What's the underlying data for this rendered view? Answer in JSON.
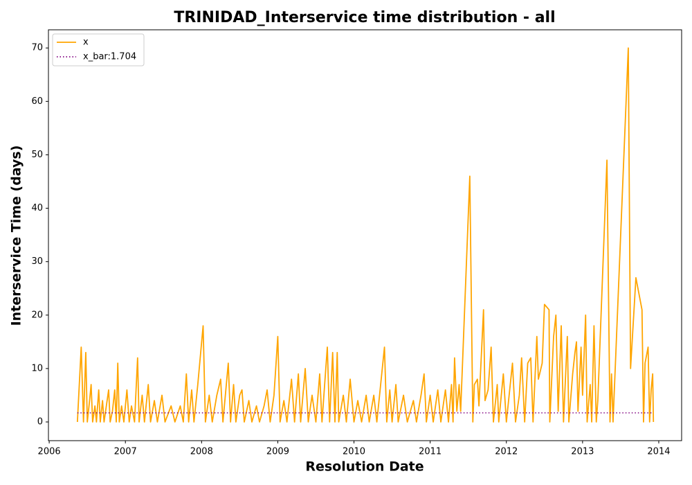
{
  "chart_data": {
    "type": "line",
    "title": "TRINIDAD_Interservice time distribution - all",
    "x_label": "Resolution Date",
    "y_label": "Interservice Time (days)",
    "xlim": [
      2005.99,
      2014.3
    ],
    "ylim": [
      -3.5,
      73.4
    ],
    "xticks": [
      2006,
      2007,
      2008,
      2009,
      2010,
      2011,
      2012,
      2013,
      2014
    ],
    "yticks": [
      0,
      10,
      20,
      30,
      40,
      50,
      60,
      70
    ],
    "legend": "upper left",
    "series": [
      {
        "name": "x",
        "color": "#ffa500",
        "linestyle": "solid",
        "x": [
          2006.37,
          2006.42,
          2006.45,
          2006.48,
          2006.5,
          2006.53,
          2006.55,
          2006.57,
          2006.6,
          2006.62,
          2006.65,
          2006.67,
          2006.7,
          2006.72,
          2006.75,
          2006.78,
          2006.8,
          2006.83,
          2006.86,
          2006.88,
          2006.9,
          2006.92,
          2006.95,
          2006.98,
          2007.02,
          2007.05,
          2007.08,
          2007.12,
          2007.16,
          2007.18,
          2007.22,
          2007.25,
          2007.3,
          2007.33,
          2007.38,
          2007.42,
          2007.48,
          2007.52,
          2007.6,
          2007.65,
          2007.72,
          2007.76,
          2007.8,
          2007.83,
          2007.87,
          2007.9,
          2007.95,
          2008.02,
          2008.05,
          2008.1,
          2008.14,
          2008.2,
          2008.25,
          2008.28,
          2008.35,
          2008.38,
          2008.42,
          2008.45,
          2008.5,
          2008.53,
          2008.56,
          2008.62,
          2008.66,
          2008.72,
          2008.76,
          2008.82,
          2008.86,
          2008.9,
          2008.95,
          2009.0,
          2009.03,
          2009.08,
          2009.12,
          2009.18,
          2009.22,
          2009.27,
          2009.3,
          2009.36,
          2009.4,
          2009.45,
          2009.5,
          2009.55,
          2009.58,
          2009.65,
          2009.68,
          2009.72,
          2009.75,
          2009.78,
          2009.8,
          2009.86,
          2009.9,
          2009.95,
          2010.0,
          2010.05,
          2010.1,
          2010.16,
          2010.2,
          2010.26,
          2010.3,
          2010.4,
          2010.43,
          2010.47,
          2010.5,
          2010.55,
          2010.58,
          2010.65,
          2010.7,
          2010.78,
          2010.82,
          2010.88,
          2010.92,
          2010.95,
          2011.0,
          2011.04,
          2011.1,
          2011.14,
          2011.2,
          2011.24,
          2011.28,
          2011.3,
          2011.32,
          2011.35,
          2011.38,
          2011.4,
          2011.52,
          2011.56,
          2011.58,
          2011.62,
          2011.64,
          2011.7,
          2011.72,
          2011.76,
          2011.8,
          2011.83,
          2011.88,
          2011.9,
          2011.96,
          2012.0,
          2012.08,
          2012.12,
          2012.17,
          2012.2,
          2012.24,
          2012.28,
          2012.32,
          2012.35,
          2012.4,
          2012.42,
          2012.47,
          2012.5,
          2012.56,
          2012.57,
          2012.62,
          2012.65,
          2012.68,
          2012.72,
          2012.75,
          2012.8,
          2012.82,
          2012.87,
          2012.9,
          2012.92,
          2012.94,
          2012.98,
          2013.0,
          2013.04,
          2013.06,
          2013.1,
          2013.12,
          2013.15,
          2013.18,
          2013.2,
          2013.32,
          2013.36,
          2013.38,
          2013.4,
          2013.6,
          2013.63,
          2013.7,
          2013.78,
          2013.8,
          2013.82,
          2013.86,
          2013.88,
          2013.9,
          2013.92,
          2013.93
        ],
        "values": [
          0,
          14,
          0,
          13,
          0,
          4,
          7,
          0,
          3,
          0,
          6,
          0,
          4,
          0,
          3,
          6,
          0,
          2,
          6,
          0,
          11,
          0,
          3,
          0,
          6,
          0,
          3,
          0,
          12,
          0,
          5,
          0,
          7,
          0,
          4,
          0,
          5,
          0,
          3,
          0,
          3,
          0,
          9,
          0,
          6,
          0,
          7,
          18,
          0,
          5,
          0,
          5,
          8,
          0,
          11,
          0,
          7,
          0,
          5,
          6,
          0,
          4,
          0,
          3,
          0,
          3,
          6,
          0,
          5,
          16,
          0,
          4,
          0,
          8,
          0,
          9,
          0,
          10,
          0,
          5,
          0,
          9,
          0,
          14,
          0,
          13,
          0,
          13,
          0,
          5,
          0,
          8,
          0,
          4,
          0,
          5,
          0,
          5,
          0,
          14,
          0,
          6,
          0,
          7,
          0,
          5,
          0,
          4,
          0,
          5,
          9,
          0,
          5,
          0,
          6,
          0,
          6,
          0,
          7,
          0,
          12,
          2,
          7,
          2,
          46,
          0,
          7,
          8,
          3,
          21,
          4,
          6,
          14,
          0,
          7,
          0,
          9,
          0,
          11,
          0,
          5,
          12,
          0,
          11,
          12,
          0,
          16,
          8,
          11,
          22,
          21,
          0,
          16,
          20,
          2,
          18,
          0,
          16,
          0,
          9,
          13,
          15,
          2,
          14,
          5,
          20,
          0,
          7,
          0,
          18,
          0,
          4,
          49,
          0,
          9,
          0,
          70,
          10,
          27,
          21,
          0,
          11,
          14,
          0,
          6,
          9,
          0
        ]
      },
      {
        "name": "x_bar:1.704",
        "color": "#800080",
        "linestyle": "dotted",
        "x": [
          2006.37,
          2013.93
        ],
        "values": [
          1.704,
          1.704
        ]
      }
    ]
  }
}
